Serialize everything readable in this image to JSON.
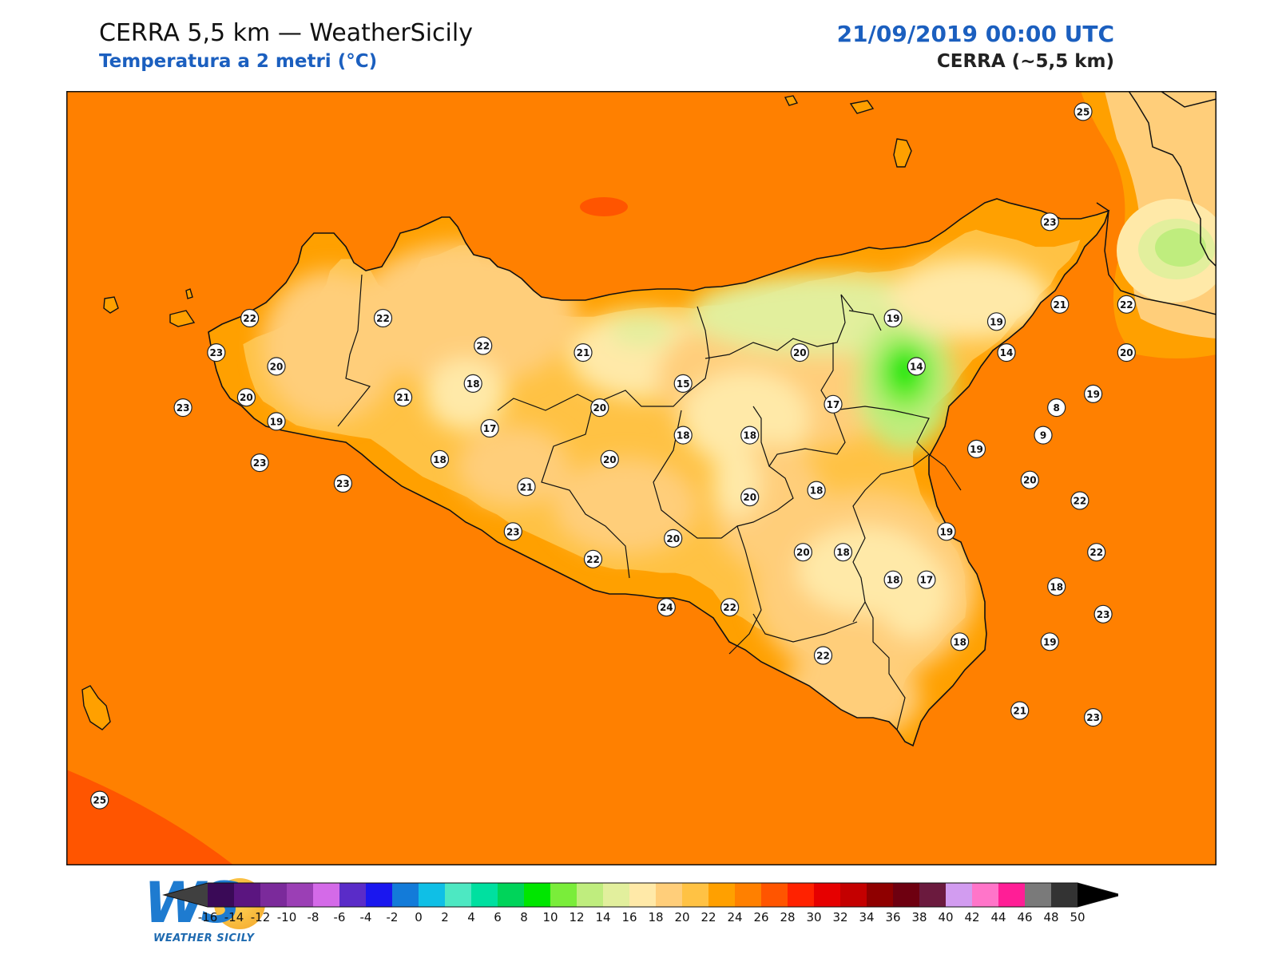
{
  "header": {
    "title": "CERRA 5,5 km — WeatherSicily",
    "subtitle": "Temperatura a 2 metri (°C)",
    "datetime": "21/09/2019 00:00 UTC",
    "model": "CERRA (~5,5 km)"
  },
  "logo": {
    "initials": "WS",
    "text": "WEATHER SICILY"
  },
  "colors": {
    "sea": "#ff8000",
    "land_border": "#111111",
    "title_accent": "#1b5fbf"
  },
  "stations": [
    {
      "v": "25",
      "lon": 15.05,
      "lat": 38.8
    },
    {
      "v": "23",
      "lon": 14.95,
      "lat": 38.48
    },
    {
      "v": "22",
      "lon": 12.55,
      "lat": 38.2
    },
    {
      "v": "22",
      "lon": 12.95,
      "lat": 38.2
    },
    {
      "v": "22",
      "lon": 13.25,
      "lat": 38.12
    },
    {
      "v": "23",
      "lon": 12.45,
      "lat": 38.1
    },
    {
      "v": "20",
      "lon": 12.63,
      "lat": 38.06
    },
    {
      "v": "20",
      "lon": 12.54,
      "lat": 37.97
    },
    {
      "v": "23",
      "lon": 12.35,
      "lat": 37.94
    },
    {
      "v": "19",
      "lon": 12.63,
      "lat": 37.9
    },
    {
      "v": "23",
      "lon": 12.58,
      "lat": 37.78
    },
    {
      "v": "21",
      "lon": 13.01,
      "lat": 37.97
    },
    {
      "v": "18",
      "lon": 13.22,
      "lat": 38.01
    },
    {
      "v": "17",
      "lon": 13.27,
      "lat": 37.88
    },
    {
      "v": "18",
      "lon": 13.12,
      "lat": 37.79
    },
    {
      "v": "23",
      "lon": 12.83,
      "lat": 37.72
    },
    {
      "v": "21",
      "lon": 13.38,
      "lat": 37.71
    },
    {
      "v": "21",
      "lon": 13.55,
      "lat": 38.1
    },
    {
      "v": "20",
      "lon": 13.6,
      "lat": 37.94
    },
    {
      "v": "20",
      "lon": 13.63,
      "lat": 37.79
    },
    {
      "v": "15",
      "lon": 13.85,
      "lat": 38.01
    },
    {
      "v": "18",
      "lon": 13.85,
      "lat": 37.86
    },
    {
      "v": "18",
      "lon": 14.05,
      "lat": 37.86
    },
    {
      "v": "20",
      "lon": 14.2,
      "lat": 38.1
    },
    {
      "v": "17",
      "lon": 14.3,
      "lat": 37.95
    },
    {
      "v": "19",
      "lon": 14.48,
      "lat": 38.2
    },
    {
      "v": "14",
      "lon": 14.55,
      "lat": 38.06
    },
    {
      "v": "14",
      "lon": 14.82,
      "lat": 38.1
    },
    {
      "v": "19",
      "lon": 14.79,
      "lat": 38.19
    },
    {
      "v": "21",
      "lon": 14.98,
      "lat": 38.24
    },
    {
      "v": "22",
      "lon": 15.18,
      "lat": 38.24
    },
    {
      "v": "20",
      "lon": 15.18,
      "lat": 38.1
    },
    {
      "v": "19",
      "lon": 15.08,
      "lat": 37.98
    },
    {
      "v": "8",
      "lon": 14.97,
      "lat": 37.94
    },
    {
      "v": "9",
      "lon": 14.93,
      "lat": 37.86
    },
    {
      "v": "19",
      "lon": 14.73,
      "lat": 37.82
    },
    {
      "v": "20",
      "lon": 14.89,
      "lat": 37.73
    },
    {
      "v": "22",
      "lon": 15.04,
      "lat": 37.67
    },
    {
      "v": "18",
      "lon": 14.25,
      "lat": 37.7
    },
    {
      "v": "20",
      "lon": 14.05,
      "lat": 37.68
    },
    {
      "v": "19",
      "lon": 14.64,
      "lat": 37.58
    },
    {
      "v": "18",
      "lon": 14.33,
      "lat": 37.52
    },
    {
      "v": "20",
      "lon": 14.21,
      "lat": 37.52
    },
    {
      "v": "22",
      "lon": 15.09,
      "lat": 37.52
    },
    {
      "v": "18",
      "lon": 14.48,
      "lat": 37.44
    },
    {
      "v": "17",
      "lon": 14.58,
      "lat": 37.44
    },
    {
      "v": "18",
      "lon": 14.97,
      "lat": 37.42
    },
    {
      "v": "23",
      "lon": 15.11,
      "lat": 37.34
    },
    {
      "v": "24",
      "lon": 13.8,
      "lat": 37.36
    },
    {
      "v": "22",
      "lon": 13.99,
      "lat": 37.36
    },
    {
      "v": "20",
      "lon": 13.82,
      "lat": 37.56
    },
    {
      "v": "22",
      "lon": 13.58,
      "lat": 37.5
    },
    {
      "v": "23",
      "lon": 13.34,
      "lat": 37.58
    },
    {
      "v": "18",
      "lon": 14.68,
      "lat": 37.26
    },
    {
      "v": "19",
      "lon": 14.95,
      "lat": 37.26
    },
    {
      "v": "22",
      "lon": 14.27,
      "lat": 37.22
    },
    {
      "v": "21",
      "lon": 14.86,
      "lat": 37.06
    },
    {
      "v": "23",
      "lon": 15.08,
      "lat": 37.04
    },
    {
      "v": "25",
      "lon": 12.1,
      "lat": 36.8
    }
  ],
  "colorbar": {
    "tick_labels": [
      "-16",
      "-14",
      "-12",
      "-10",
      "-8",
      "-6",
      "-4",
      "-2",
      "0",
      "2",
      "4",
      "6",
      "8",
      "10",
      "12",
      "14",
      "16",
      "18",
      "20",
      "22",
      "24",
      "26",
      "28",
      "30",
      "32",
      "34",
      "36",
      "38",
      "40",
      "42",
      "44",
      "46",
      "48",
      "50"
    ],
    "colors": [
      "#3a0a57",
      "#5b1580",
      "#7b2a9b",
      "#9b3fb5",
      "#d46ae8",
      "#5a2cc8",
      "#1a17ef",
      "#137bd9",
      "#0fbfe6",
      "#4de8c2",
      "#00e0a0",
      "#00d45a",
      "#00e600",
      "#7aed3a",
      "#bfed7e",
      "#e2ef9d",
      "#ffe9a8",
      "#ffce7a",
      "#ffc244",
      "#ffa000",
      "#ff8000",
      "#ff5500",
      "#ff2200",
      "#e60000",
      "#c40000",
      "#8f0000",
      "#6e0010",
      "#6b1a3e",
      "#d29cf0",
      "#ff75c9",
      "#ff1e96",
      "#7a7a7a",
      "#333333"
    ],
    "under_color": "#404040",
    "over_color": "#000000"
  }
}
